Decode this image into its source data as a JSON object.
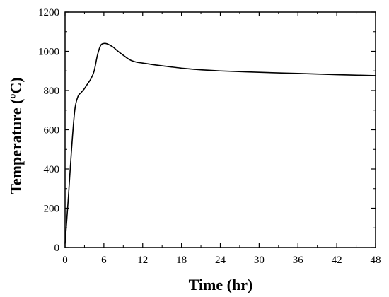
{
  "chart_data": {
    "type": "line",
    "title": "",
    "xlabel": "Time (hr)",
    "ylabel": "Temperature (ºC)",
    "xlim": [
      0,
      48
    ],
    "ylim": [
      0,
      1200
    ],
    "xticks": [
      0,
      6,
      12,
      18,
      24,
      30,
      36,
      42,
      48
    ],
    "yticks": [
      0,
      200,
      400,
      600,
      800,
      1000,
      1200
    ],
    "grid": false,
    "legend": "none",
    "series": [
      {
        "color": "#000000",
        "x": [
          0,
          0.5,
          1,
          1.5,
          2,
          2.5,
          3,
          3.5,
          4,
          4.5,
          5,
          5.5,
          6,
          6.5,
          7,
          7.5,
          8,
          9,
          10,
          11,
          12,
          14,
          16,
          18,
          20,
          24,
          30,
          36,
          42,
          48
        ],
        "y": [
          20,
          250,
          500,
          700,
          770,
          790,
          810,
          835,
          860,
          900,
          980,
          1030,
          1040,
          1038,
          1030,
          1020,
          1005,
          980,
          957,
          945,
          940,
          930,
          922,
          914,
          908,
          900,
          893,
          887,
          881,
          876
        ]
      }
    ]
  }
}
